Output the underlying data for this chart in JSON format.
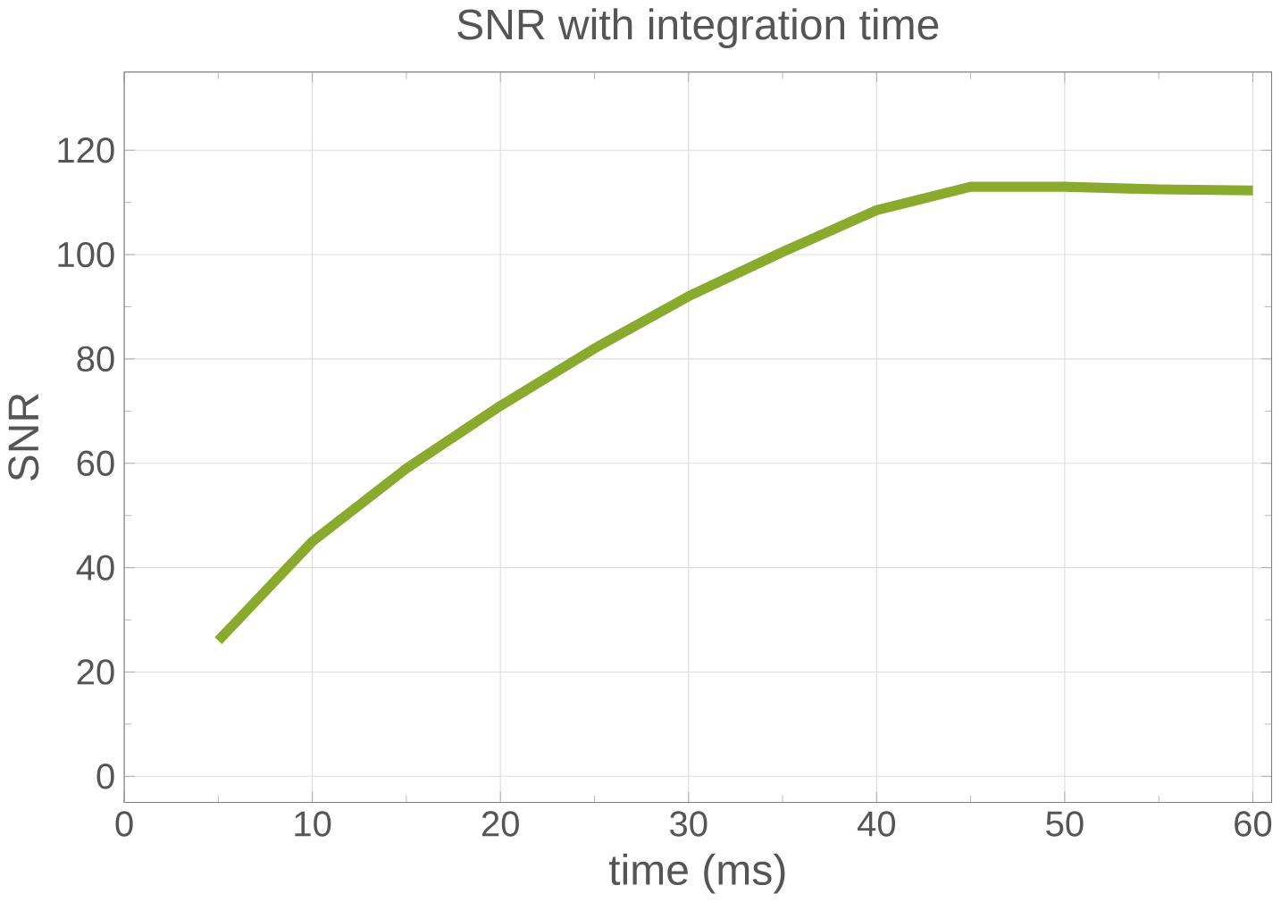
{
  "chart_data": {
    "type": "line",
    "title": "SNR with integration time",
    "xlabel": "time (ms)",
    "ylabel": "SNR",
    "x": [
      5,
      10,
      15,
      20,
      25,
      30,
      35,
      40,
      45,
      50,
      55,
      60
    ],
    "series": [
      {
        "color": "#8aaa2e",
        "values": [
          26,
          45,
          59,
          71,
          82,
          92,
          100.5,
          108.5,
          113,
          113,
          112.5,
          112.3
        ]
      }
    ],
    "xlim": [
      0,
      61
    ],
    "ylim": [
      -5,
      135
    ],
    "xticks": [
      0,
      10,
      20,
      30,
      40,
      50,
      60
    ],
    "yticks": [
      0,
      20,
      40,
      60,
      80,
      100,
      120
    ],
    "grid": true,
    "marker": "none",
    "line_style": "solid"
  }
}
